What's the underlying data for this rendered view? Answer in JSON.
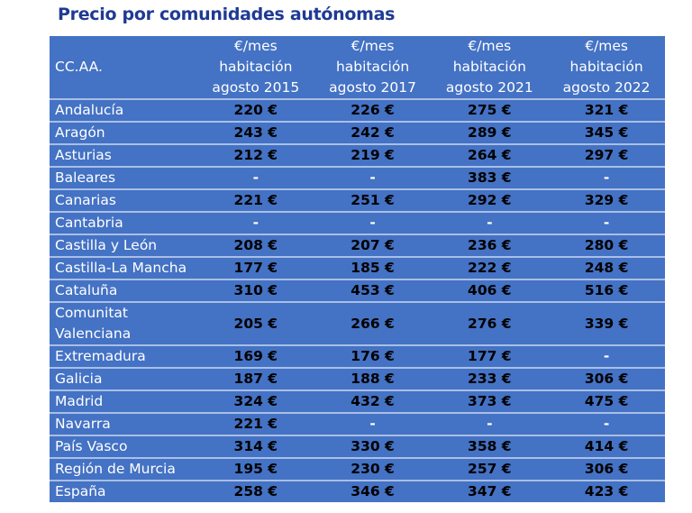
{
  "title": "Precio por comunidades autónomas",
  "headers": [
    "CC.AA.",
    [
      "€/mes",
      "habitación",
      "agosto 2015"
    ],
    [
      "€/mes",
      "habitación",
      "agosto 2017"
    ],
    [
      "€/mes",
      "habitación",
      "agosto 2021"
    ],
    [
      "€/mes",
      "habitación",
      "agosto 2022"
    ]
  ],
  "rows": [
    [
      "Andalucía",
      "220 €",
      "226 €",
      "275 €",
      "321 €"
    ],
    [
      "Aragón",
      "243 €",
      "242 €",
      "289 €",
      "345 €"
    ],
    [
      "Asturias",
      "212 €",
      "219 €",
      "264 €",
      "297 €"
    ],
    [
      "Baleares",
      "-",
      "-",
      "383 €",
      "-"
    ],
    [
      "Canarias",
      "221 €",
      "251 €",
      "292 €",
      "329 €"
    ],
    [
      "Cantabria",
      "-",
      "-",
      "-",
      "-"
    ],
    [
      "Castilla y León",
      "208 €",
      "207 €",
      "236 €",
      "280 €"
    ],
    [
      "Castilla-La Mancha",
      "177 €",
      "185 €",
      "222 €",
      "248 €"
    ],
    [
      "Cataluña",
      "310 €",
      "453 €",
      "406 €",
      "516 €"
    ],
    [
      "Comunitat Valenciana",
      "205 €",
      "266 €",
      "276 €",
      "339 €"
    ],
    [
      "Extremadura",
      "169 €",
      "176 €",
      "177 €",
      "-"
    ],
    [
      "Galicia",
      "187 €",
      "188 €",
      "233 €",
      "306 €"
    ],
    [
      "Madrid",
      "324 €",
      "432 €",
      "373 €",
      "475 €"
    ],
    [
      "Navarra",
      "221 €",
      "-",
      "-",
      "-"
    ],
    [
      "País Vasco",
      "314 €",
      "330 €",
      "358 €",
      "414 €"
    ],
    [
      "Región de Murcia",
      "195 €",
      "230 €",
      "257 €",
      "306 €"
    ],
    [
      "España",
      "258 €",
      "346 €",
      "347 €",
      "423 €"
    ]
  ]
}
